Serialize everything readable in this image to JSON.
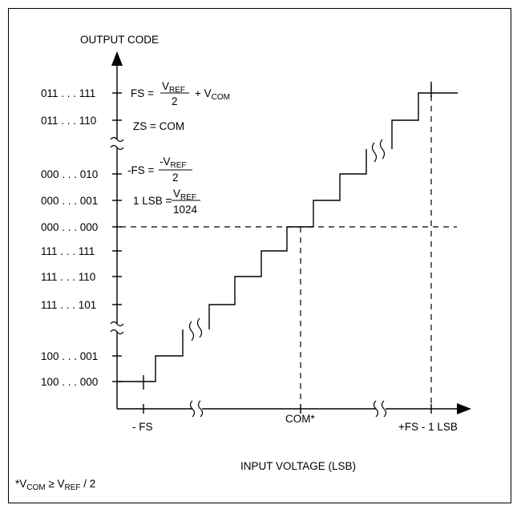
{
  "axes": {
    "y_title": "OUTPUT CODE",
    "x_title": "INPUT VOLTAGE (LSB)"
  },
  "y_codes": [
    "011 . . . 111",
    "011 . . . 110",
    "000 . . . 010",
    "000 . . . 001",
    "000 . . . 000",
    "111 . . . 111",
    "111 . . . 110",
    "111 . . . 101",
    "100 . . . 001",
    "100 . . . 000"
  ],
  "x_labels": [
    "- FS",
    "COM*",
    "+FS - 1 LSB"
  ],
  "equations": {
    "fs_prefix": "FS =",
    "fs_num_v": "V",
    "fs_num_sub": "REF",
    "fs_den": "2",
    "fs_plus": "+ V",
    "fs_plus_sub": "COM",
    "zs": "ZS = COM",
    "nfs_prefix": "-FS =",
    "nfs_num_v": "-V",
    "nfs_num_sub": "REF",
    "nfs_den": "2",
    "lsb_prefix": "1 LSB =",
    "lsb_num_v": "V",
    "lsb_num_sub": "REF",
    "lsb_den": "1024"
  },
  "footnote": {
    "star": "*V",
    "sub1": "COM",
    "mid": " ≥ V",
    "sub2": "REF",
    "tail": " / 2"
  }
}
